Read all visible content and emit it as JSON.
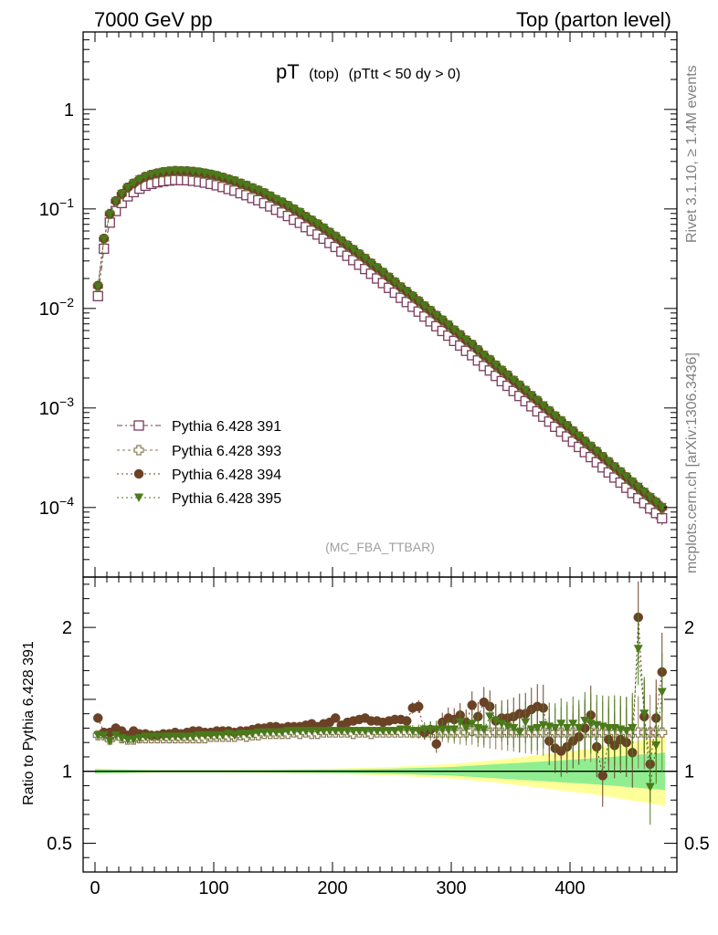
{
  "header": {
    "left": "7000 GeV pp",
    "right": "Top (parton level)"
  },
  "side_labels": {
    "rivet": "Rivet 3.1.10, ≥ 1.4M events",
    "mcplots": "mcplots.cern.ch [arXiv:1306.3436]"
  },
  "colors": {
    "s391": "#7a3b5c",
    "s393": "#8a7a52",
    "s394": "#6b4226",
    "s395": "#4a7a1a",
    "band_outer": "#ffff99",
    "band_inner": "#90ee90",
    "watermark": "#a0a0a0",
    "side_text": "#808080"
  },
  "chart_data": [
    {
      "id": "main",
      "type": "line",
      "title_main": "pT",
      "title_sub": "(top)",
      "title_cut": "(pTtt < 50 dy > 0)",
      "watermark": "(MC_FBA_TTBAR)",
      "yscale": "log",
      "xlim": [
        -10,
        490
      ],
      "ylim": [
        2e-05,
        6
      ],
      "ytick_labels": [
        {
          "value": 1,
          "label": "1"
        },
        {
          "value": 0.1,
          "base": "10",
          "exp": "−1"
        },
        {
          "value": 0.01,
          "base": "10",
          "exp": "−2"
        },
        {
          "value": 0.001,
          "base": "10",
          "exp": "−3"
        },
        {
          "value": 0.0001,
          "base": "10",
          "exp": "−4"
        }
      ],
      "legend_position": "bottom-left",
      "x": [
        2.5,
        7.5,
        12.5,
        17.5,
        22.5,
        27.5,
        32.5,
        37.5,
        42.5,
        47.5,
        52.5,
        57.5,
        62.5,
        67.5,
        72.5,
        77.5,
        82.5,
        87.5,
        92.5,
        97.5,
        102.5,
        107.5,
        112.5,
        117.5,
        122.5,
        127.5,
        132.5,
        137.5,
        142.5,
        147.5,
        152.5,
        157.5,
        162.5,
        167.5,
        172.5,
        177.5,
        182.5,
        187.5,
        192.5,
        197.5,
        202.5,
        207.5,
        212.5,
        217.5,
        222.5,
        227.5,
        232.5,
        237.5,
        242.5,
        247.5,
        252.5,
        257.5,
        262.5,
        267.5,
        272.5,
        277.5,
        282.5,
        287.5,
        292.5,
        297.5,
        302.5,
        307.5,
        312.5,
        317.5,
        322.5,
        327.5,
        332.5,
        337.5,
        342.5,
        347.5,
        352.5,
        357.5,
        362.5,
        367.5,
        372.5,
        377.5,
        382.5,
        387.5,
        392.5,
        397.5,
        402.5,
        407.5,
        412.5,
        417.5,
        422.5,
        427.5,
        432.5,
        437.5,
        442.5,
        447.5,
        452.5,
        457.5,
        462.5,
        467.5,
        472.5,
        477.5
      ],
      "series": [
        {
          "name": "Pythia 6.428 391",
          "marker": "open-square",
          "color_key": "s391",
          "values": [
            0.0133,
            0.0398,
            0.0729,
            0.0952,
            0.1146,
            0.1338,
            0.1475,
            0.1598,
            0.171,
            0.1784,
            0.1851,
            0.1897,
            0.1926,
            0.1952,
            0.1947,
            0.1943,
            0.1916,
            0.1882,
            0.1836,
            0.1783,
            0.1728,
            0.1661,
            0.1585,
            0.1526,
            0.1439,
            0.1374,
            0.1288,
            0.1222,
            0.1141,
            0.106,
            0.0981,
            0.092,
            0.0849,
            0.0779,
            0.0725,
            0.0656,
            0.0604,
            0.0553,
            0.0503,
            0.0455,
            0.0415,
            0.0373,
            0.0338,
            0.0306,
            0.0275,
            0.0249,
            0.0223,
            0.02,
            0.018,
            0.0161,
            0.0144,
            0.0128,
            0.0116,
            0.0104,
            0.0093,
            0.00829,
            0.00742,
            0.00663,
            0.00594,
            0.00533,
            0.00472,
            0.00424,
            0.00375,
            0.00339,
            0.003,
            0.00264,
            0.00238,
            0.0021,
            0.00186,
            0.00167,
            0.00148,
            0.00132,
            0.00117,
            0.00104,
            0.000925,
            0.000817,
            0.00073,
            0.000648,
            0.000579,
            0.000517,
            0.000458,
            0.000406,
            0.00036,
            0.000321,
            0.000285,
            0.000253,
            0.000225,
            0.0002,
            0.000178,
            0.000158,
            0.00014,
            0.000124,
            0.000111,
            9.8e-05,
            8.8e-05,
            7.8e-05
          ]
        },
        {
          "name": "Pythia 6.428 393",
          "marker": "open-cross",
          "color_key": "s393",
          "values": [
            0.0167,
            0.0496,
            0.089,
            0.1191,
            0.1403,
            0.1634,
            0.1797,
            0.196,
            0.21,
            0.2194,
            0.2269,
            0.2334,
            0.2373,
            0.2402,
            0.2391,
            0.2384,
            0.2357,
            0.2318,
            0.2266,
            0.2206,
            0.2138,
            0.2057,
            0.1968,
            0.1893,
            0.1795,
            0.171,
            0.161,
            0.1528,
            0.1434,
            0.1332,
            0.1232,
            0.1158,
            0.1071,
            0.0987,
            0.0914,
            0.083,
            0.0763,
            0.0698,
            0.0636,
            0.0577,
            0.0526,
            0.0473,
            0.0428,
            0.0387,
            0.0349,
            0.0315,
            0.0282,
            0.0254,
            0.0228,
            0.0204,
            0.0183,
            0.0163,
            0.0147,
            0.0132,
            0.0118,
            0.0105,
            0.00945,
            0.00843,
            0.00757,
            0.00678,
            0.006,
            0.0054,
            0.00477,
            0.00432,
            0.00381,
            0.00336,
            0.00303,
            0.00267,
            0.00237,
            0.00212,
            0.00188,
            0.00168,
            0.00149,
            0.00132,
            0.00118,
            0.00104,
            0.000929,
            0.000825,
            0.000737,
            0.000658,
            0.000583,
            0.000517,
            0.000458,
            0.000408,
            0.000363,
            0.000322,
            0.000286,
            0.000254,
            0.000226,
            0.000201,
            0.000178,
            0.000158,
            0.000141,
            0.000125,
            0.000112,
            9.9e-05
          ]
        },
        {
          "name": "Pythia 6.428 394",
          "marker": "filled-circle",
          "color_key": "s394",
          "values": [
            0.017,
            0.0505,
            0.0893,
            0.1202,
            0.1414,
            0.1645,
            0.1806,
            0.1975,
            0.2112,
            0.221,
            0.2286,
            0.2351,
            0.239,
            0.242,
            0.241,
            0.2403,
            0.2376,
            0.2337,
            0.2284,
            0.2224,
            0.2155,
            0.2075,
            0.1984,
            0.1909,
            0.1809,
            0.1724,
            0.1623,
            0.154,
            0.1446,
            0.1343,
            0.1242,
            0.1168,
            0.108,
            0.0995,
            0.0922,
            0.0837,
            0.0769,
            0.0704,
            0.0641,
            0.0582,
            0.053,
            0.0477,
            0.0432,
            0.039,
            0.0352,
            0.0318,
            0.0285,
            0.0256,
            0.023,
            0.0206,
            0.0184,
            0.0164,
            0.0148,
            0.0133,
            0.0119,
            0.0106,
            0.00952,
            0.0085,
            0.00763,
            0.00683,
            0.00605,
            0.00544,
            0.00481,
            0.00436,
            0.00384,
            0.00339,
            0.00305,
            0.00269,
            0.00239,
            0.00214,
            0.00189,
            0.00169,
            0.0015,
            0.00133,
            0.00119,
            0.00105,
            0.000936,
            0.000831,
            0.000742,
            0.000663,
            0.000588,
            0.000521,
            0.000462,
            0.000411,
            0.000366,
            0.000324,
            0.000288,
            0.000256,
            0.000228,
            0.000203,
            0.00018,
            0.00016,
            0.000142,
            0.000126,
            0.000113,
            0.0001
          ]
        },
        {
          "name": "Pythia 6.428 395",
          "marker": "filled-triangle-down",
          "color_key": "s395",
          "values": [
            0.0166,
            0.0498,
            0.0881,
            0.1193,
            0.141,
            0.164,
            0.181,
            0.197,
            0.2115,
            0.2212,
            0.229,
            0.2356,
            0.2396,
            0.2426,
            0.2416,
            0.2409,
            0.2383,
            0.2344,
            0.2291,
            0.2231,
            0.2162,
            0.2082,
            0.1991,
            0.1915,
            0.1815,
            0.173,
            0.1629,
            0.1546,
            0.1451,
            0.1348,
            0.1247,
            0.1172,
            0.1084,
            0.0999,
            0.0925,
            0.084,
            0.0772,
            0.0707,
            0.0644,
            0.0584,
            0.0532,
            0.0479,
            0.0433,
            0.0392,
            0.0353,
            0.0319,
            0.0286,
            0.0257,
            0.0231,
            0.0207,
            0.0185,
            0.0165,
            0.0149,
            0.0133,
            0.0119,
            0.0106,
            0.00955,
            0.00853,
            0.00766,
            0.00686,
            0.00607,
            0.00546,
            0.00483,
            0.00437,
            0.00385,
            0.0034,
            0.00306,
            0.0027,
            0.0024,
            0.00215,
            0.0019,
            0.0017,
            0.00151,
            0.00134,
            0.00119,
            0.00106,
            0.00094,
            0.000835,
            0.000746,
            0.000666,
            0.000591,
            0.000524,
            0.000464,
            0.000413,
            0.000367,
            0.000326,
            0.000289,
            0.000257,
            0.000229,
            0.000204,
            0.000181,
            0.000161,
            0.000143,
            0.000127,
            0.000113,
            0.000101
          ]
        }
      ]
    },
    {
      "id": "ratio",
      "type": "line",
      "ylabel": "Ratio to Pythia 6.428 391",
      "xlim": [
        -10,
        490
      ],
      "ylim": [
        0.3,
        2.35
      ],
      "ytick_labels": [
        {
          "value": 2,
          "label": "2"
        },
        {
          "value": 1,
          "label": "1"
        },
        {
          "value": 0.5,
          "label": "0.5"
        }
      ],
      "xtick_labels": [
        {
          "value": 0,
          "label": "0"
        },
        {
          "value": 100,
          "label": "100"
        },
        {
          "value": 200,
          "label": "200"
        },
        {
          "value": 300,
          "label": "300"
        },
        {
          "value": 400,
          "label": "400"
        }
      ],
      "reference_line": 1,
      "bands": {
        "x": [
          0,
          50,
          100,
          150,
          200,
          250,
          300,
          340,
          380,
          420,
          450,
          480
        ],
        "inner_half_width": [
          0.015,
          0.008,
          0.008,
          0.009,
          0.012,
          0.018,
          0.03,
          0.05,
          0.07,
          0.09,
          0.11,
          0.13
        ],
        "outer_half_width": [
          0.02,
          0.01,
          0.01,
          0.012,
          0.018,
          0.03,
          0.05,
          0.08,
          0.12,
          0.16,
          0.2,
          0.24
        ]
      },
      "series": [
        {
          "name": "Pythia 6.428 393 / 391",
          "color_key": "s393",
          "values": [
            1.25,
            1.25,
            1.22,
            1.25,
            1.23,
            1.22,
            1.22,
            1.23,
            1.23,
            1.23,
            1.23,
            1.23,
            1.23,
            1.23,
            1.23,
            1.23,
            1.23,
            1.23,
            1.23,
            1.24,
            1.24,
            1.24,
            1.24,
            1.24,
            1.25,
            1.24,
            1.25,
            1.25,
            1.26,
            1.26,
            1.26,
            1.26,
            1.26,
            1.27,
            1.26,
            1.27,
            1.26,
            1.26,
            1.27,
            1.27,
            1.27,
            1.27,
            1.27,
            1.26,
            1.27,
            1.27,
            1.26,
            1.27,
            1.27,
            1.27,
            1.27,
            1.27,
            1.27,
            1.27,
            1.27,
            1.27,
            1.27,
            1.27,
            1.27,
            1.27,
            1.27,
            1.27,
            1.27,
            1.28,
            1.27,
            1.27,
            1.27,
            1.27,
            1.27,
            1.27,
            1.27,
            1.27,
            1.27,
            1.27,
            1.27,
            1.27,
            1.27,
            1.27,
            1.27,
            1.27,
            1.27,
            1.27,
            1.27,
            1.27,
            1.27,
            1.27,
            1.27,
            1.27,
            1.27,
            1.27,
            1.27,
            1.27,
            1.27,
            1.27,
            1.27,
            1.27
          ]
        },
        {
          "name": "Pythia 6.428 394 / 391",
          "color_key": "s394",
          "values": [
            1.37,
            1.27,
            1.27,
            1.3,
            1.28,
            1.25,
            1.28,
            1.26,
            1.26,
            1.25,
            1.25,
            1.26,
            1.26,
            1.27,
            1.26,
            1.27,
            1.28,
            1.28,
            1.27,
            1.27,
            1.28,
            1.28,
            1.28,
            1.27,
            1.28,
            1.28,
            1.29,
            1.3,
            1.3,
            1.31,
            1.31,
            1.3,
            1.31,
            1.31,
            1.31,
            1.32,
            1.33,
            1.31,
            1.33,
            1.34,
            1.37,
            1.32,
            1.34,
            1.35,
            1.36,
            1.37,
            1.35,
            1.35,
            1.34,
            1.35,
            1.36,
            1.36,
            1.35,
            1.44,
            1.45,
            1.27,
            1.29,
            1.19,
            1.34,
            1.37,
            1.36,
            1.39,
            1.34,
            1.46,
            1.38,
            1.48,
            1.45,
            1.35,
            1.37,
            1.37,
            1.38,
            1.4,
            1.4,
            1.43,
            1.45,
            1.44,
            1.21,
            1.16,
            1.14,
            1.17,
            1.21,
            1.24,
            1.3,
            1.39,
            1.17,
            0.97,
            1.22,
            1.18,
            1.22,
            1.2,
            1.13,
            2.07,
            1.38,
            1.05,
            1.37,
            1.69
          ]
        },
        {
          "name": "Pythia 6.428 395 / 391",
          "color_key": "s395",
          "values": [
            1.25,
            1.25,
            1.21,
            1.25,
            1.23,
            1.22,
            1.22,
            1.23,
            1.24,
            1.24,
            1.24,
            1.24,
            1.24,
            1.24,
            1.24,
            1.24,
            1.24,
            1.25,
            1.25,
            1.25,
            1.25,
            1.25,
            1.26,
            1.25,
            1.26,
            1.26,
            1.26,
            1.27,
            1.27,
            1.27,
            1.27,
            1.27,
            1.28,
            1.28,
            1.28,
            1.28,
            1.28,
            1.28,
            1.28,
            1.28,
            1.28,
            1.28,
            1.28,
            1.28,
            1.28,
            1.28,
            1.28,
            1.28,
            1.28,
            1.28,
            1.28,
            1.29,
            1.29,
            1.28,
            1.28,
            1.29,
            1.29,
            1.29,
            1.29,
            1.29,
            1.29,
            1.34,
            1.3,
            1.33,
            1.3,
            1.29,
            1.38,
            1.35,
            1.33,
            1.31,
            1.3,
            1.27,
            1.34,
            1.29,
            1.3,
            1.32,
            1.31,
            1.3,
            1.33,
            1.3,
            1.33,
            1.3,
            1.35,
            1.33,
            1.32,
            1.31,
            1.3,
            1.3,
            1.29,
            1.28,
            1.3,
            1.85,
            1.4,
            0.89,
            1.18,
            1.55
          ]
        }
      ]
    }
  ],
  "legend": [
    {
      "label": "Pythia 6.428 391"
    },
    {
      "label": "Pythia 6.428 393"
    },
    {
      "label": "Pythia 6.428 394"
    },
    {
      "label": "Pythia 6.428 395"
    }
  ]
}
